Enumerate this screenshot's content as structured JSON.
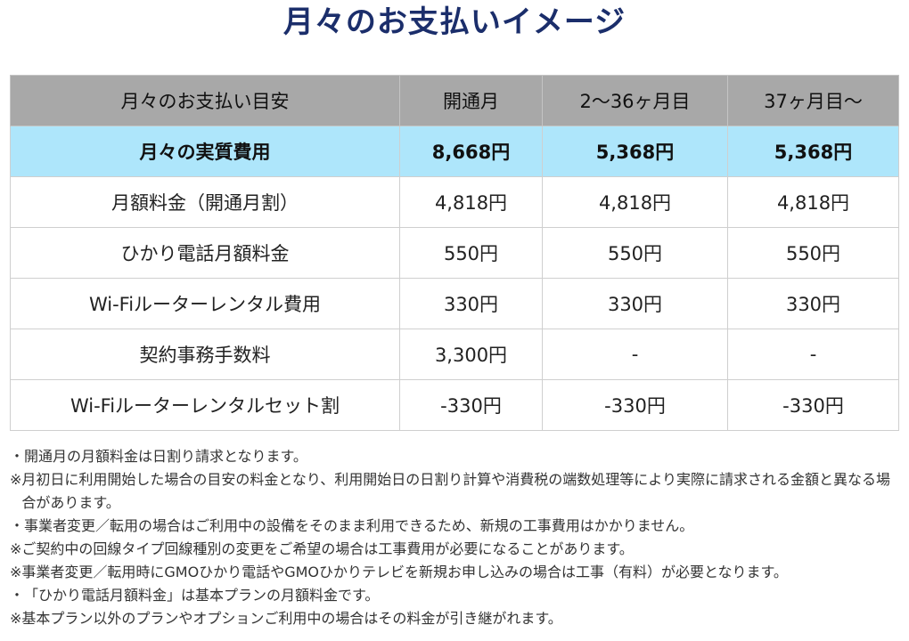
{
  "title": "月々のお支払いイメージ",
  "table": {
    "headers": [
      "月々のお支払い目安",
      "開通月",
      "2〜36ヶ月目",
      "37ヶ月目〜"
    ],
    "highlight_row": {
      "label": "月々の実質費用",
      "values": [
        "8,668円",
        "5,368円",
        "5,368円"
      ]
    },
    "rows": [
      {
        "label": "月額料金（開通月割）",
        "values": [
          "4,818円",
          "4,818円",
          "4,818円"
        ]
      },
      {
        "label": "ひかり電話月額料金",
        "values": [
          "550円",
          "550円",
          "550円"
        ]
      },
      {
        "label": "Wi-Fiルーターレンタル費用",
        "values": [
          "330円",
          "330円",
          "330円"
        ]
      },
      {
        "label": "契約事務手数料",
        "values": [
          "3,300円",
          "-",
          "-"
        ]
      },
      {
        "label": "Wi-Fiルーターレンタルセット割",
        "values": [
          "-330円",
          "-330円",
          "-330円"
        ]
      }
    ]
  },
  "notes": [
    {
      "mark": "・",
      "text": "開通月の月額料金は日割り請求となります。"
    },
    {
      "mark": "※ ",
      "text": "月初日に利用開始した場合の目安の料金となり、利用開始日の日割り計算や消費税の端数処理等により実際に請求される金額と異なる場合があります。"
    },
    {
      "mark": "・",
      "text": "事業者変更／転用の場合はご利用中の設備をそのまま利用できるため、新規の工事費用はかかりません。"
    },
    {
      "mark": "※",
      "text": "ご契約中の回線タイプ回線種別の変更をご希望の場合は工事費用が必要になることがあります。"
    },
    {
      "mark": "※",
      "text": "事業者変更／転用時にGMOひかり電話やGMOひかりテレビを新規お申し込みの場合は工事（有料）が必要となります。"
    },
    {
      "mark": "・",
      "text": "「ひかり電話月額料金」は基本プランの月額料金です。"
    },
    {
      "mark": "※",
      "text": "基本プラン以外のプランやオプションご利用中の場合はその料金が引き継がれます。"
    }
  ]
}
